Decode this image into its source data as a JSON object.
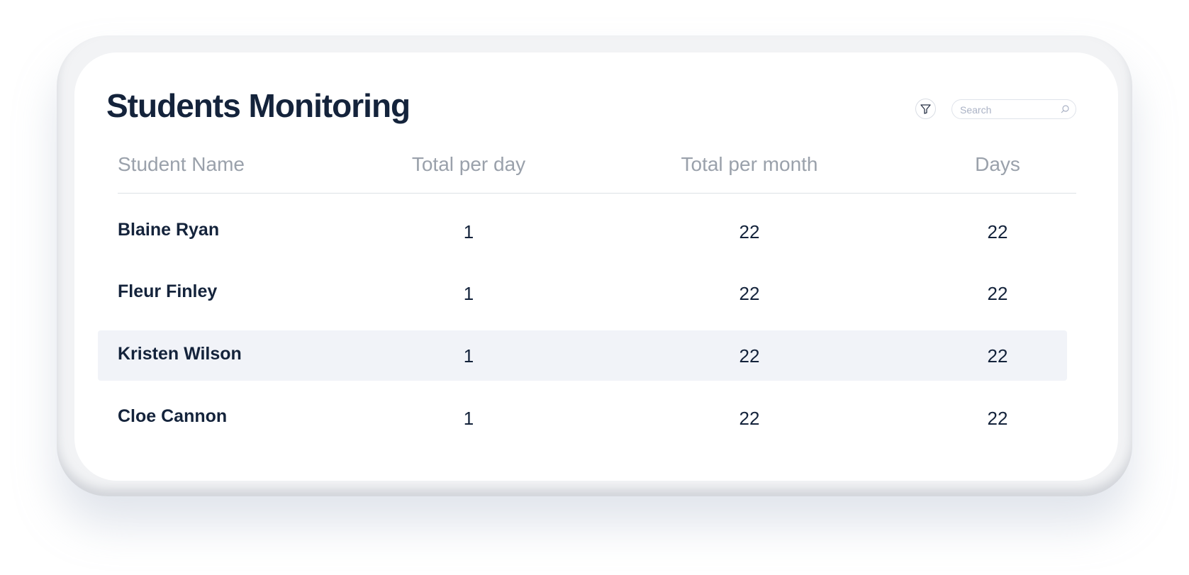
{
  "header": {
    "title": "Students Monitoring",
    "search_placeholder": "Search"
  },
  "table": {
    "columns": [
      "Student Name",
      "Total per day",
      "Total per month",
      "Days"
    ],
    "rows": [
      [
        "Blaine Ryan",
        1,
        22,
        22
      ],
      [
        "Fleur Finley",
        1,
        22,
        22
      ],
      [
        "Kristen Wilson",
        1,
        22,
        22
      ],
      [
        "Cloe Cannon",
        1,
        22,
        22
      ]
    ]
  }
}
